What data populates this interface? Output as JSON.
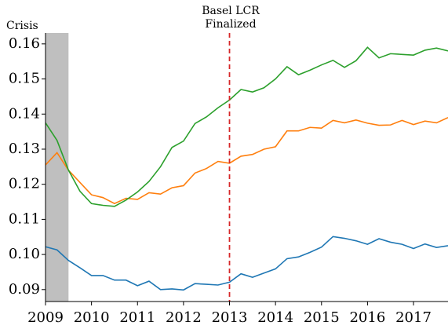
{
  "chart_data": {
    "type": "line",
    "annotations": {
      "crisis": "Crisis",
      "basel_line1": "Basel LCR",
      "basel_line2": "Finalized"
    },
    "shade_span": [
      2009,
      2009.5
    ],
    "shade_color": "#bfbfbf",
    "vline_x": 2013,
    "vline_color": "#d62728",
    "x": [
      2009,
      2009.25,
      2009.5,
      2009.75,
      2010,
      2010.25,
      2010.5,
      2010.75,
      2011,
      2011.25,
      2011.5,
      2011.75,
      2012,
      2012.25,
      2012.5,
      2012.75,
      2013,
      2013.25,
      2013.5,
      2013.75,
      2014,
      2014.25,
      2014.5,
      2014.75,
      2015,
      2015.25,
      2015.5,
      2015.75,
      2016,
      2016.25,
      2016.5,
      2016.75,
      2017,
      2017.25,
      2017.5,
      2017.75
    ],
    "series": [
      {
        "color": "#1f77b4",
        "values": [
          0.1022,
          0.1013,
          0.0983,
          0.0962,
          0.094,
          0.094,
          0.0927,
          0.0927,
          0.0911,
          0.0924,
          0.09,
          0.0902,
          0.0899,
          0.0917,
          0.0915,
          0.0913,
          0.0921,
          0.0945,
          0.0935,
          0.0947,
          0.0959,
          0.0988,
          0.0993,
          0.1006,
          0.1021,
          0.1051,
          0.1046,
          0.1039,
          0.1029,
          0.1045,
          0.1035,
          0.1029,
          0.1017,
          0.103,
          0.102,
          0.1025
        ]
      },
      {
        "color": "#ff7f0e",
        "values": [
          0.1255,
          0.129,
          0.124,
          0.1205,
          0.117,
          0.1162,
          0.1145,
          0.116,
          0.1157,
          0.1176,
          0.1172,
          0.119,
          0.1196,
          0.1232,
          0.1245,
          0.1265,
          0.126,
          0.128,
          0.1285,
          0.13,
          0.1307,
          0.1352,
          0.1352,
          0.1362,
          0.136,
          0.1382,
          0.1375,
          0.1383,
          0.1374,
          0.1368,
          0.1369,
          0.1382,
          0.137,
          0.138,
          0.1375,
          0.139
        ]
      },
      {
        "color": "#2ca02c",
        "values": [
          0.1375,
          0.1325,
          0.124,
          0.118,
          0.1145,
          0.114,
          0.1137,
          0.1155,
          0.1178,
          0.1208,
          0.125,
          0.1305,
          0.1323,
          0.1373,
          0.1392,
          0.1418,
          0.144,
          0.147,
          0.1463,
          0.1475,
          0.15,
          0.1535,
          0.1512,
          0.1525,
          0.154,
          0.1553,
          0.1533,
          0.1552,
          0.159,
          0.156,
          0.1572,
          0.157,
          0.1568,
          0.1582,
          0.1588,
          0.158
        ]
      }
    ],
    "xlim": [
      2009,
      2017.75
    ],
    "xticks": [
      2009,
      2010,
      2011,
      2012,
      2013,
      2014,
      2015,
      2016,
      2017
    ],
    "ylim": [
      0.0866,
      0.1631
    ],
    "yticks": [
      0.09,
      {
        "value": 0.1,
        "label": "0.10"
      },
      0.11,
      0.12,
      0.13,
      0.14,
      0.15,
      0.16
    ]
  }
}
